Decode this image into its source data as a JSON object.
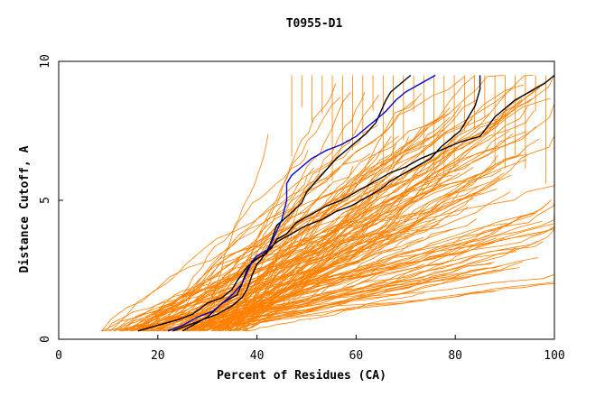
{
  "chart_data": {
    "type": "line",
    "title": "T0955-D1",
    "xlabel": "Percent of Residues (CA)",
    "ylabel": "Distance Cutoff, A",
    "xlim": [
      0,
      100
    ],
    "ylim": [
      0,
      10
    ],
    "xticks": [
      0,
      20,
      40,
      60,
      80,
      100
    ],
    "yticks": [
      0,
      5,
      10
    ],
    "grid": false,
    "colors": {
      "background": "#ffffff",
      "axis": "#000000",
      "orange": "#ff8000",
      "black": "#000000",
      "blue": "#0000cc"
    },
    "highlight_series": [
      {
        "color": "black",
        "points": [
          [
            25,
            0.3
          ],
          [
            27,
            0.5
          ],
          [
            30,
            0.8
          ],
          [
            33,
            1.3
          ],
          [
            36,
            1.6
          ],
          [
            37,
            2.0
          ],
          [
            38,
            2.5
          ],
          [
            39,
            2.8
          ],
          [
            41,
            3.0
          ],
          [
            43,
            3.3
          ],
          [
            44,
            3.6
          ],
          [
            46,
            3.8
          ],
          [
            48,
            4.2
          ],
          [
            51,
            4.5
          ],
          [
            54,
            4.8
          ],
          [
            57,
            5.0
          ],
          [
            60,
            5.3
          ],
          [
            62,
            5.5
          ],
          [
            64,
            5.7
          ],
          [
            67,
            6.0
          ],
          [
            70,
            6.2
          ],
          [
            73,
            6.5
          ],
          [
            77,
            6.8
          ],
          [
            81,
            7.1
          ],
          [
            85,
            7.3
          ],
          [
            88,
            8.0
          ],
          [
            92,
            8.6
          ],
          [
            95,
            8.9
          ],
          [
            98,
            9.2
          ],
          [
            100,
            9.5
          ]
        ]
      },
      {
        "color": "black",
        "points": [
          [
            23,
            0.3
          ],
          [
            26,
            0.5
          ],
          [
            29,
            0.7
          ],
          [
            32,
            0.9
          ],
          [
            35,
            1.2
          ],
          [
            37,
            1.5
          ],
          [
            38,
            1.8
          ],
          [
            39,
            2.3
          ],
          [
            40,
            2.7
          ],
          [
            41,
            2.9
          ],
          [
            42,
            3.2
          ],
          [
            44,
            3.5
          ],
          [
            47,
            3.8
          ],
          [
            50,
            4.1
          ],
          [
            53,
            4.3
          ],
          [
            56,
            4.6
          ],
          [
            59,
            4.8
          ],
          [
            62,
            5.1
          ],
          [
            65,
            5.4
          ],
          [
            67,
            5.7
          ],
          [
            69,
            5.9
          ],
          [
            72,
            6.2
          ],
          [
            75,
            6.5
          ],
          [
            77,
            6.9
          ],
          [
            79,
            7.2
          ],
          [
            81,
            7.5
          ],
          [
            83,
            8.1
          ],
          [
            84,
            8.4
          ],
          [
            85,
            9.0
          ],
          [
            85,
            9.5
          ]
        ]
      },
      {
        "color": "black",
        "points": [
          [
            16,
            0.3
          ],
          [
            20,
            0.5
          ],
          [
            24,
            0.7
          ],
          [
            27,
            0.9
          ],
          [
            30,
            1.3
          ],
          [
            33,
            1.5
          ],
          [
            35,
            1.8
          ],
          [
            36,
            2.1
          ],
          [
            38,
            2.6
          ],
          [
            40,
            2.9
          ],
          [
            42,
            3.1
          ],
          [
            43,
            3.6
          ],
          [
            44,
            4.1
          ],
          [
            46,
            4.4
          ],
          [
            49,
            4.9
          ],
          [
            50,
            5.3
          ],
          [
            52,
            5.7
          ],
          [
            54,
            6.1
          ],
          [
            56,
            6.5
          ],
          [
            58,
            6.8
          ],
          [
            60,
            7.1
          ],
          [
            62,
            7.4
          ],
          [
            64,
            7.8
          ],
          [
            65,
            8.2
          ],
          [
            66,
            8.6
          ],
          [
            67,
            8.9
          ],
          [
            69,
            9.2
          ],
          [
            71,
            9.5
          ]
        ]
      },
      {
        "color": "blue",
        "points": [
          [
            22,
            0.3
          ],
          [
            25,
            0.5
          ],
          [
            28,
            0.8
          ],
          [
            31,
            1.0
          ],
          [
            33,
            1.3
          ],
          [
            35,
            1.6
          ],
          [
            37,
            2.0
          ],
          [
            38,
            2.4
          ],
          [
            39,
            2.8
          ],
          [
            40,
            3.0
          ],
          [
            42,
            3.2
          ],
          [
            43,
            3.5
          ],
          [
            44,
            3.9
          ],
          [
            45,
            4.3
          ],
          [
            46,
            5.0
          ],
          [
            46,
            5.6
          ],
          [
            47,
            5.9
          ],
          [
            49,
            6.2
          ],
          [
            51,
            6.5
          ],
          [
            54,
            6.8
          ],
          [
            57,
            7.0
          ],
          [
            60,
            7.3
          ],
          [
            62,
            7.6
          ],
          [
            64,
            7.9
          ],
          [
            66,
            8.2
          ],
          [
            68,
            8.6
          ],
          [
            70,
            8.9
          ],
          [
            73,
            9.2
          ],
          [
            76,
            9.5
          ]
        ]
      }
    ]
  }
}
